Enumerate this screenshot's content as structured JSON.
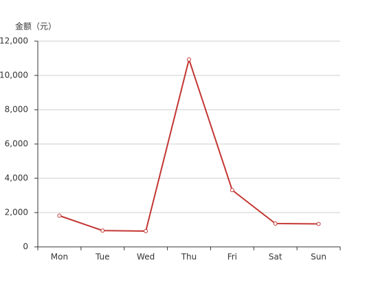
{
  "chart_data": {
    "type": "line",
    "y_axis_label": "金额（元）",
    "categories": [
      "Mon",
      "Tue",
      "Wed",
      "Thu",
      "Fri",
      "Sat",
      "Sun"
    ],
    "values": [
      1820,
      950,
      920,
      10930,
      3310,
      1360,
      1340
    ],
    "color": "#c23531",
    "ylim": [
      0,
      12000
    ],
    "yticks": [
      0,
      {
        "value": 2000,
        "label": "2,000"
      },
      {
        "value": 4000,
        "label": "4,000"
      },
      {
        "value": 6000,
        "label": "6,000"
      },
      {
        "value": 8000,
        "label": "8,000"
      },
      {
        "value": 10000,
        "label": "10,000"
      },
      {
        "value": 12000,
        "label": "12,000"
      }
    ],
    "grid": true
  }
}
